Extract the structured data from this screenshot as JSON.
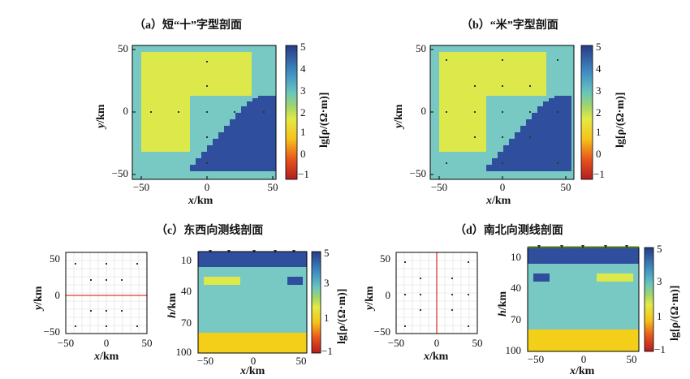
{
  "colors": {
    "background": "#78c8c4",
    "conductor": "#2f4f9e",
    "resistor": "#dde94a",
    "bottom": "#f3cf19",
    "line": "#e03a2f",
    "station": "#333333"
  },
  "colorbar": {
    "label_text": "lg[ρ/(Ω·m)]",
    "ticks": [
      "5",
      "4",
      "3",
      "2",
      "1",
      "0",
      "−1"
    ],
    "ticks_short": [
      "5",
      "3",
      "1",
      "−1"
    ]
  },
  "panel_a": {
    "title": "（a）短“十”字型剖面",
    "x_ticks": [
      "−50",
      "0",
      "50"
    ],
    "y_ticks": [
      "50",
      "0",
      "−50"
    ],
    "x_label": "x",
    "y_label": "y",
    "unit": "/km"
  },
  "panel_b": {
    "title": "（b）“米”字型剖面",
    "x_ticks": [
      "−50",
      "0",
      "50"
    ],
    "y_ticks": [
      "50",
      "0",
      "−50"
    ],
    "x_label": "x",
    "y_label": "y",
    "unit": "/km"
  },
  "panel_c": {
    "title": "（c）东西向测线剖面",
    "map_x_ticks": [
      "−50",
      "0",
      "50"
    ],
    "map_y_ticks": [
      "50",
      "0",
      "−50"
    ],
    "sec_x_ticks": [
      "−50",
      "0",
      "50"
    ],
    "sec_y_ticks": [
      "10",
      "40",
      "70",
      "100"
    ],
    "x_label": "x",
    "y_label": "y",
    "h_label": "h",
    "unit": "/km"
  },
  "panel_d": {
    "title": "（d）南北向测线剖面",
    "map_x_ticks": [
      "−50",
      "0",
      "50"
    ],
    "map_y_ticks": [
      "50",
      "0",
      "−50"
    ],
    "sec_x_ticks": [
      "−50",
      "0",
      "50"
    ],
    "sec_y_ticks": [
      "10",
      "40",
      "70",
      "100"
    ],
    "x_label": "x",
    "y_label": "y",
    "h_label": "h",
    "unit": "/km"
  }
}
